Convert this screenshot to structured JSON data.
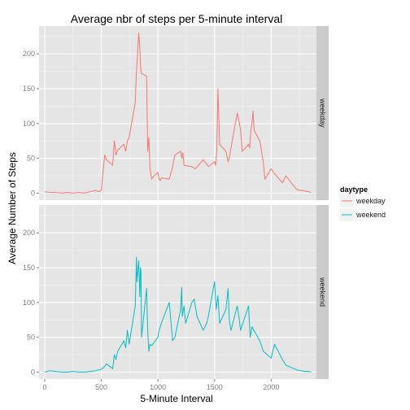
{
  "chart_data": {
    "type": "line",
    "title": "Average nbr of steps per 5-minute interval",
    "xlabel": "5-Minute Interval",
    "ylabel": "Average Number of Steps",
    "xlim": [
      -50,
      2400
    ],
    "ylim": [
      -10,
      240
    ],
    "xticks": [
      0,
      500,
      1000,
      1500,
      2000
    ],
    "yticks": [
      0,
      50,
      100,
      150,
      200
    ],
    "facet_variable": "daytype",
    "legend": {
      "title": "daytype",
      "placement": "right",
      "entries": [
        {
          "label": "weekday",
          "color": "#F8766D"
        },
        {
          "label": "weekend",
          "color": "#00BFC4"
        }
      ]
    },
    "grid": true,
    "series": [
      {
        "name": "weekday",
        "color": "#F8766D",
        "x": [
          0,
          50,
          100,
          150,
          200,
          250,
          300,
          350,
          400,
          450,
          480,
          500,
          515,
          530,
          545,
          600,
          615,
          630,
          645,
          700,
          715,
          730,
          745,
          800,
          810,
          820,
          830,
          840,
          845,
          850,
          855,
          900,
          910,
          920,
          930,
          940,
          945,
          950,
          1000,
          1010,
          1020,
          1030,
          1100,
          1130,
          1150,
          1200,
          1210,
          1220,
          1230,
          1300,
          1330,
          1400,
          1430,
          1445,
          1500,
          1510,
          1520,
          1530,
          1545,
          1600,
          1620,
          1630,
          1645,
          1700,
          1730,
          1745,
          1800,
          1810,
          1820,
          1830,
          1840,
          1850,
          1900,
          1930,
          1945,
          2000,
          2030,
          2100,
          2130,
          2200,
          2230,
          2300,
          2330,
          2355
        ],
        "y": [
          2,
          1,
          1,
          0,
          1,
          0,
          1,
          0,
          2,
          4,
          2,
          5,
          30,
          55,
          48,
          40,
          75,
          55,
          62,
          70,
          60,
          75,
          80,
          130,
          175,
          200,
          230,
          210,
          185,
          175,
          172,
          168,
          60,
          80,
          35,
          25,
          20,
          22,
          30,
          20,
          18,
          22,
          20,
          38,
          55,
          60,
          50,
          58,
          40,
          38,
          35,
          48,
          42,
          38,
          45,
          40,
          60,
          150,
          70,
          60,
          45,
          50,
          65,
          115,
          92,
          60,
          70,
          65,
          90,
          100,
          118,
          90,
          75,
          45,
          20,
          35,
          28,
          15,
          25,
          10,
          5,
          3,
          2,
          1
        ]
      },
      {
        "name": "weekend",
        "color": "#00BFC4",
        "x": [
          0,
          50,
          100,
          150,
          200,
          250,
          300,
          350,
          400,
          450,
          500,
          530,
          545,
          600,
          615,
          630,
          645,
          700,
          715,
          730,
          745,
          800,
          810,
          815,
          820,
          830,
          840,
          845,
          850,
          855,
          900,
          910,
          920,
          930,
          945,
          1000,
          1010,
          1030,
          1100,
          1130,
          1150,
          1200,
          1210,
          1215,
          1230,
          1245,
          1300,
          1320,
          1345,
          1400,
          1430,
          1445,
          1500,
          1515,
          1530,
          1545,
          1600,
          1620,
          1630,
          1645,
          1700,
          1715,
          1730,
          1800,
          1815,
          1830,
          1900,
          1930,
          2000,
          2030,
          2100,
          2130,
          2200,
          2230,
          2300,
          2330,
          2355
        ],
        "y": [
          0,
          2,
          1,
          0,
          0,
          1,
          0,
          0,
          1,
          2,
          4,
          8,
          12,
          5,
          25,
          18,
          30,
          45,
          35,
          60,
          40,
          95,
          165,
          130,
          140,
          160,
          108,
          150,
          145,
          50,
          120,
          60,
          30,
          40,
          38,
          50,
          60,
          70,
          100,
          45,
          50,
          90,
          122,
          80,
          95,
          70,
          100,
          105,
          80,
          60,
          70,
          80,
          130,
          90,
          110,
          70,
          90,
          120,
          75,
          60,
          95,
          80,
          60,
          95,
          50,
          65,
          45,
          30,
          20,
          40,
          18,
          10,
          5,
          3,
          1,
          1,
          0
        ]
      }
    ]
  },
  "panels": [
    {
      "strip": "weekday"
    },
    {
      "strip": "weekend"
    }
  ]
}
